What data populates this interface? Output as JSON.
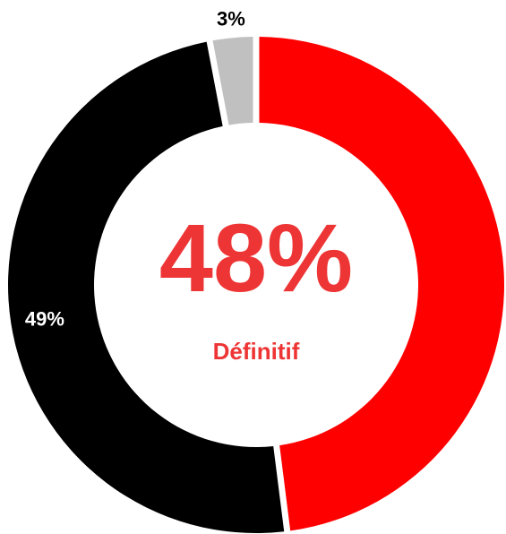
{
  "chart_data": {
    "type": "pie",
    "variant": "donut",
    "start_angle_deg": 0,
    "direction": "clockwise",
    "slices": [
      {
        "label": "48%",
        "value": 48,
        "color": "#ff0000",
        "label_color": "#ffffff",
        "label_visible": false
      },
      {
        "label": "49%",
        "value": 49,
        "color": "#000000",
        "label_color": "#ffffff",
        "label_visible": true
      },
      {
        "label": "3%",
        "value": 3,
        "color": "#c0c0c0",
        "label_color": "#000000",
        "label_visible": true
      }
    ],
    "center": {
      "value": "48%",
      "caption": "Définitif",
      "color": "#ee3535"
    },
    "legend": "none"
  }
}
